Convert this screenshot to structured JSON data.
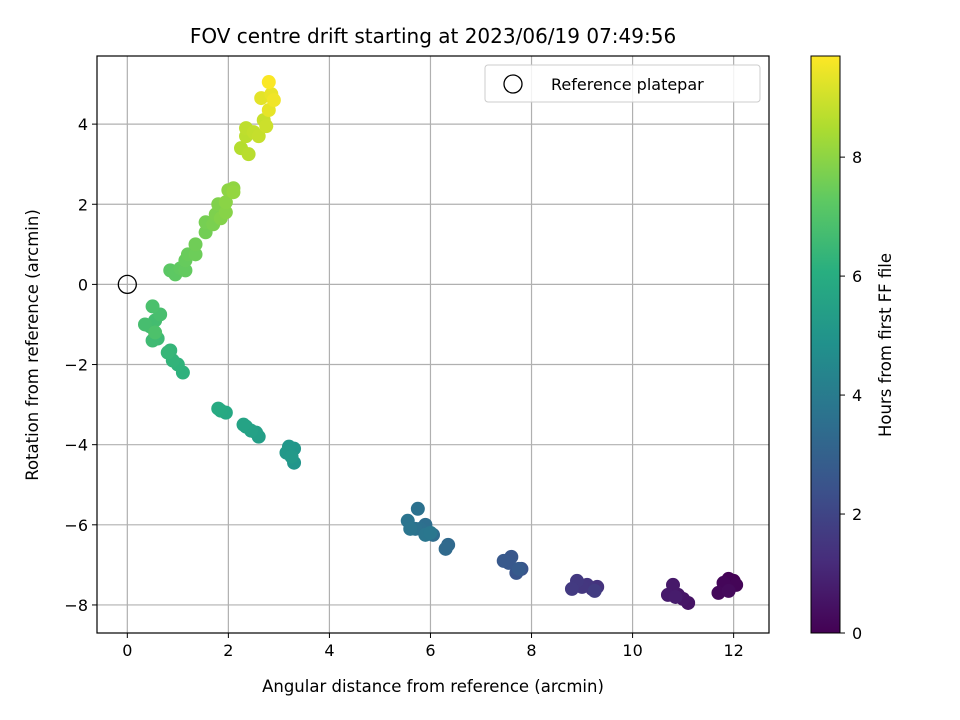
{
  "chart_data": {
    "type": "scatter",
    "title": "FOV centre drift starting at 2023/06/19 07:49:56",
    "xlabel": "Angular distance from reference (arcmin)",
    "ylabel": "Rotation from reference (arcmin)",
    "xlim": [
      -0.6,
      12.7
    ],
    "ylim": [
      -8.7,
      5.7
    ],
    "xticks": [
      0,
      2,
      4,
      6,
      8,
      10,
      12
    ],
    "yticks": [
      -8,
      -6,
      -4,
      -2,
      0,
      2,
      4
    ],
    "grid": true,
    "legend": {
      "placement": "upper-right",
      "label": "Reference platepar"
    },
    "reference_point": {
      "x": 0,
      "y": 0
    },
    "colorbar": {
      "label": "Hours from first FF file",
      "colormap": "viridis",
      "range": [
        0,
        9.7
      ],
      "ticks": [
        0,
        2,
        4,
        6,
        8
      ]
    },
    "points": [
      {
        "x": 12.0,
        "y": -7.4,
        "c": 0.0
      },
      {
        "x": 11.9,
        "y": -7.35,
        "c": 0.05
      },
      {
        "x": 12.05,
        "y": -7.5,
        "c": 0.1
      },
      {
        "x": 11.8,
        "y": -7.45,
        "c": 0.15
      },
      {
        "x": 11.7,
        "y": -7.7,
        "c": 0.2
      },
      {
        "x": 11.9,
        "y": -7.65,
        "c": 0.25
      },
      {
        "x": 11.1,
        "y": -7.95,
        "c": 0.5
      },
      {
        "x": 11.0,
        "y": -7.85,
        "c": 0.55
      },
      {
        "x": 10.9,
        "y": -7.75,
        "c": 0.6
      },
      {
        "x": 10.8,
        "y": -7.5,
        "c": 0.65
      },
      {
        "x": 10.7,
        "y": -7.75,
        "c": 0.7
      },
      {
        "x": 10.85,
        "y": -7.8,
        "c": 0.75
      },
      {
        "x": 9.3,
        "y": -7.55,
        "c": 1.4
      },
      {
        "x": 9.2,
        "y": -7.6,
        "c": 1.45
      },
      {
        "x": 9.1,
        "y": -7.5,
        "c": 1.5
      },
      {
        "x": 9.0,
        "y": -7.55,
        "c": 1.55
      },
      {
        "x": 8.9,
        "y": -7.4,
        "c": 1.6
      },
      {
        "x": 8.8,
        "y": -7.6,
        "c": 1.65
      },
      {
        "x": 9.25,
        "y": -7.65,
        "c": 1.7
      },
      {
        "x": 7.8,
        "y": -7.1,
        "c": 2.5
      },
      {
        "x": 7.7,
        "y": -7.2,
        "c": 2.55
      },
      {
        "x": 7.6,
        "y": -6.8,
        "c": 2.6
      },
      {
        "x": 7.55,
        "y": -6.95,
        "c": 2.65
      },
      {
        "x": 7.45,
        "y": -6.9,
        "c": 2.7
      },
      {
        "x": 7.75,
        "y": -7.1,
        "c": 2.75
      },
      {
        "x": 6.35,
        "y": -6.5,
        "c": 3.3
      },
      {
        "x": 6.3,
        "y": -6.6,
        "c": 3.35
      },
      {
        "x": 6.05,
        "y": -6.25,
        "c": 3.4
      },
      {
        "x": 5.95,
        "y": -6.2,
        "c": 3.45
      },
      {
        "x": 5.9,
        "y": -6.0,
        "c": 3.5
      },
      {
        "x": 5.8,
        "y": -6.1,
        "c": 3.55
      },
      {
        "x": 5.75,
        "y": -5.6,
        "c": 3.6
      },
      {
        "x": 5.7,
        "y": -6.1,
        "c": 3.65
      },
      {
        "x": 5.55,
        "y": -5.9,
        "c": 3.7
      },
      {
        "x": 5.6,
        "y": -6.1,
        "c": 3.75
      },
      {
        "x": 5.9,
        "y": -6.25,
        "c": 3.8
      },
      {
        "x": 6.0,
        "y": -6.2,
        "c": 3.85
      },
      {
        "x": 3.3,
        "y": -4.45,
        "c": 5.0
      },
      {
        "x": 3.3,
        "y": -4.1,
        "c": 5.05
      },
      {
        "x": 3.2,
        "y": -4.05,
        "c": 5.1
      },
      {
        "x": 3.15,
        "y": -4.2,
        "c": 5.15
      },
      {
        "x": 3.25,
        "y": -4.3,
        "c": 5.2
      },
      {
        "x": 2.6,
        "y": -3.8,
        "c": 5.4
      },
      {
        "x": 2.55,
        "y": -3.7,
        "c": 5.45
      },
      {
        "x": 2.45,
        "y": -3.65,
        "c": 5.5
      },
      {
        "x": 2.35,
        "y": -3.55,
        "c": 5.55
      },
      {
        "x": 2.3,
        "y": -3.5,
        "c": 5.6
      },
      {
        "x": 1.95,
        "y": -3.2,
        "c": 5.8
      },
      {
        "x": 1.85,
        "y": -3.15,
        "c": 5.85
      },
      {
        "x": 1.8,
        "y": -3.1,
        "c": 5.9
      },
      {
        "x": 1.1,
        "y": -2.2,
        "c": 6.2
      },
      {
        "x": 1.0,
        "y": -2.0,
        "c": 6.25
      },
      {
        "x": 0.9,
        "y": -1.9,
        "c": 6.3
      },
      {
        "x": 0.85,
        "y": -1.65,
        "c": 6.35
      },
      {
        "x": 0.8,
        "y": -1.7,
        "c": 6.4
      },
      {
        "x": 0.6,
        "y": -1.35,
        "c": 6.55
      },
      {
        "x": 0.5,
        "y": -1.4,
        "c": 6.6
      },
      {
        "x": 0.45,
        "y": -1.05,
        "c": 6.65
      },
      {
        "x": 0.55,
        "y": -0.9,
        "c": 6.7
      },
      {
        "x": 0.35,
        "y": -1.0,
        "c": 6.75
      },
      {
        "x": 0.65,
        "y": -0.75,
        "c": 6.8
      },
      {
        "x": 0.5,
        "y": -0.55,
        "c": 6.85
      },
      {
        "x": 0.55,
        "y": -1.2,
        "c": 6.9
      },
      {
        "x": 0.85,
        "y": 0.35,
        "c": 7.2
      },
      {
        "x": 0.95,
        "y": 0.25,
        "c": 7.25
      },
      {
        "x": 1.05,
        "y": 0.4,
        "c": 7.3
      },
      {
        "x": 1.15,
        "y": 0.35,
        "c": 7.35
      },
      {
        "x": 1.15,
        "y": 0.6,
        "c": 7.4
      },
      {
        "x": 1.2,
        "y": 0.75,
        "c": 7.45
      },
      {
        "x": 1.35,
        "y": 0.75,
        "c": 7.5
      },
      {
        "x": 1.35,
        "y": 1.0,
        "c": 7.55
      },
      {
        "x": 1.55,
        "y": 1.3,
        "c": 7.6
      },
      {
        "x": 1.55,
        "y": 1.55,
        "c": 7.65
      },
      {
        "x": 1.7,
        "y": 1.5,
        "c": 7.7
      },
      {
        "x": 1.75,
        "y": 1.75,
        "c": 7.75
      },
      {
        "x": 1.8,
        "y": 2.0,
        "c": 7.8
      },
      {
        "x": 1.85,
        "y": 1.65,
        "c": 7.85
      },
      {
        "x": 1.95,
        "y": 1.8,
        "c": 7.9
      },
      {
        "x": 1.95,
        "y": 2.05,
        "c": 7.95
      },
      {
        "x": 2.0,
        "y": 2.35,
        "c": 8.0
      },
      {
        "x": 2.1,
        "y": 2.4,
        "c": 8.05
      },
      {
        "x": 2.1,
        "y": 2.3,
        "c": 8.1
      },
      {
        "x": 2.25,
        "y": 3.4,
        "c": 8.6
      },
      {
        "x": 2.4,
        "y": 3.25,
        "c": 8.65
      },
      {
        "x": 2.35,
        "y": 3.7,
        "c": 8.7
      },
      {
        "x": 2.35,
        "y": 3.9,
        "c": 8.75
      },
      {
        "x": 2.5,
        "y": 3.8,
        "c": 8.8
      },
      {
        "x": 2.6,
        "y": 3.7,
        "c": 8.85
      },
      {
        "x": 2.7,
        "y": 4.1,
        "c": 8.9
      },
      {
        "x": 2.75,
        "y": 3.95,
        "c": 8.95
      },
      {
        "x": 2.65,
        "y": 4.65,
        "c": 9.3
      },
      {
        "x": 2.8,
        "y": 4.35,
        "c": 9.35
      },
      {
        "x": 2.85,
        "y": 4.75,
        "c": 9.4
      },
      {
        "x": 2.9,
        "y": 4.6,
        "c": 9.5
      },
      {
        "x": 2.8,
        "y": 5.05,
        "c": 9.65
      }
    ]
  }
}
